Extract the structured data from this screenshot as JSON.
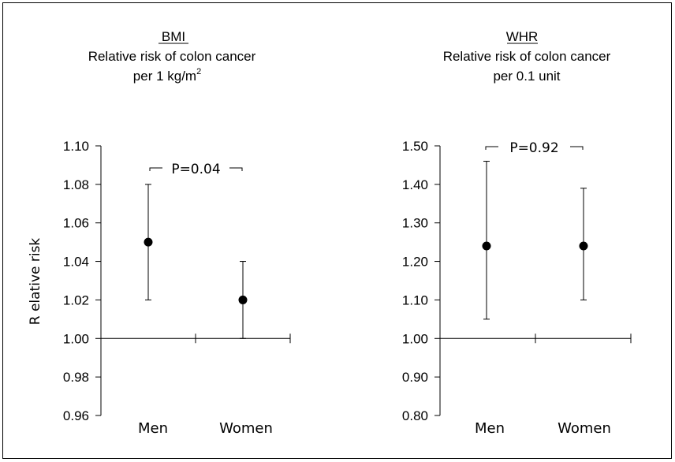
{
  "chart_data": [
    {
      "type": "scatter",
      "title_underlined": "BMI",
      "title_line2": "Relative risk of colon cancer",
      "title_line3": "per 1 kg/m",
      "title_line3_sup": "2",
      "ylabel": "R elative risk",
      "ylim": [
        0.96,
        1.1
      ],
      "yticks": [
        "1.10",
        "1.08",
        "1.06",
        "1.04",
        "1.02",
        "1.00",
        "0.98",
        "0.96"
      ],
      "ytick_values": [
        1.1,
        1.08,
        1.06,
        1.04,
        1.02,
        1.0,
        0.98,
        0.96
      ],
      "baseline": 1.0,
      "categories": [
        "Men",
        "Women"
      ],
      "points": [
        {
          "category": "Men",
          "estimate": 1.05,
          "lower": 1.02,
          "upper": 1.08
        },
        {
          "category": "Women",
          "estimate": 1.02,
          "lower": 1.0,
          "upper": 1.04
        }
      ],
      "p_value_label": "P=0.04",
      "grid": false
    },
    {
      "type": "scatter",
      "title_underlined": "WHR",
      "title_line2": "Relative risk of colon cancer",
      "title_line3": "per 0.1 unit",
      "title_line3_sup": "",
      "ylabel": "",
      "ylim": [
        0.8,
        1.5
      ],
      "yticks": [
        "1.50",
        "1.40",
        "1.30",
        "1.20",
        "1.10",
        "1.00",
        "0.90",
        "0.80"
      ],
      "ytick_values": [
        1.5,
        1.4,
        1.3,
        1.2,
        1.1,
        1.0,
        0.9,
        0.8
      ],
      "baseline": 1.0,
      "categories": [
        "Men",
        "Women"
      ],
      "points": [
        {
          "category": "Men",
          "estimate": 1.24,
          "lower": 1.05,
          "upper": 1.46
        },
        {
          "category": "Women",
          "estimate": 1.24,
          "lower": 1.1,
          "upper": 1.39
        }
      ],
      "p_value_label": "P=0.92",
      "grid": false
    }
  ]
}
